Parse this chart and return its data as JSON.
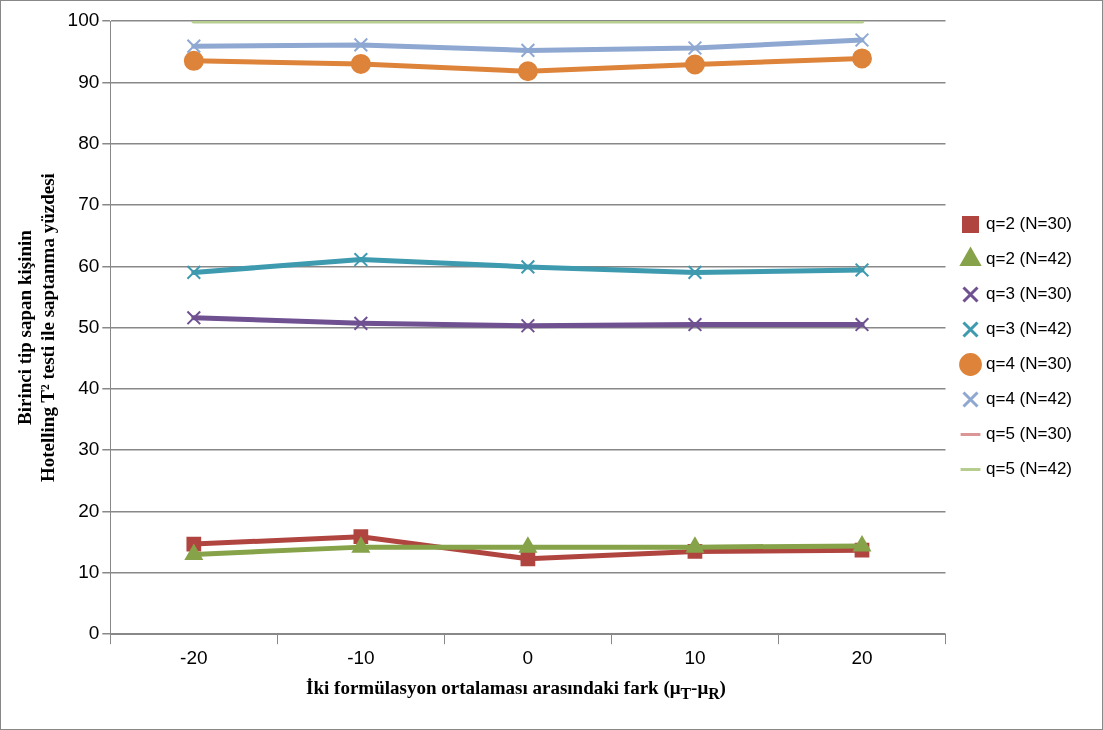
{
  "chart_data": {
    "type": "line",
    "xlabel": "İki formülasyon ortalaması arasındaki fark (μ$_{T}$-μ$_{R}$)",
    "ylabel": "Birinci tip sapan kişinin\nHotelling T² testi ile saptanma yüzdesi",
    "categories": [
      "-20",
      "-10",
      "0",
      "10",
      "20"
    ],
    "ylim": [
      0,
      100
    ],
    "yticks": [
      0,
      10,
      20,
      30,
      40,
      50,
      60,
      70,
      80,
      90,
      100
    ],
    "grid": "y",
    "legend": "right",
    "line_style": "solid",
    "series": [
      {
        "name": "q=2 (N=30)",
        "color": "#b04540",
        "marker": "square",
        "values": [
          14.7,
          15.9,
          12.3,
          13.5,
          13.7
        ]
      },
      {
        "name": "q=2 (N=42)",
        "color": "#86a34a",
        "marker": "triangle",
        "values": [
          13.0,
          14.2,
          14.2,
          14.2,
          14.4
        ]
      },
      {
        "name": "q=3 (N=30)",
        "color": "#6f5090",
        "marker": "cross",
        "values": [
          51.6,
          50.7,
          50.3,
          50.5,
          50.5
        ]
      },
      {
        "name": "q=3 (N=42)",
        "color": "#3e9aae",
        "marker": "cross",
        "values": [
          59.0,
          61.1,
          59.9,
          59.0,
          59.4
        ]
      },
      {
        "name": "q=4 (N=30)",
        "color": "#dd833a",
        "marker": "circle",
        "values": [
          93.5,
          93.0,
          91.8,
          92.9,
          93.9
        ]
      },
      {
        "name": "q=4 (N=42)",
        "color": "#8ea8d2",
        "marker": "cross",
        "values": [
          95.9,
          96.1,
          95.2,
          95.6,
          96.9
        ]
      },
      {
        "name": "q=5 (N=30)",
        "color": "#d99694",
        "marker": "none",
        "values": [
          null,
          null,
          null,
          null,
          null
        ]
      },
      {
        "name": "q=5 (N=42)",
        "color": "#b6cd8f",
        "marker": "none",
        "values": [
          100,
          100,
          100,
          100,
          100
        ]
      }
    ]
  }
}
